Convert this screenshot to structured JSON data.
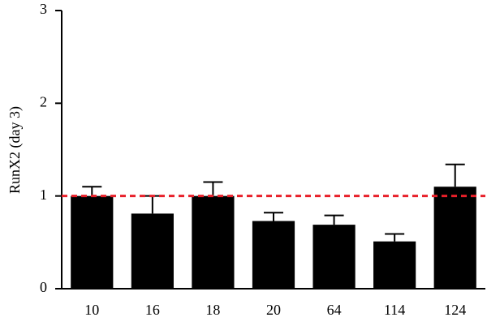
{
  "chart_data": {
    "type": "bar",
    "y_label": "RunX2 (day 3)",
    "categories": [
      "10",
      "16",
      "18",
      "20",
      "64",
      "114",
      "124"
    ],
    "values": [
      1.0,
      0.81,
      1.0,
      0.73,
      0.69,
      0.51,
      1.1
    ],
    "errors": [
      0.1,
      0.19,
      0.15,
      0.09,
      0.1,
      0.08,
      0.24
    ],
    "color": "#000000",
    "ylim": [
      0,
      3
    ],
    "yticks": [
      0,
      1,
      2,
      3
    ],
    "reference_line": {
      "value": 1,
      "color": "#e8202a"
    }
  }
}
